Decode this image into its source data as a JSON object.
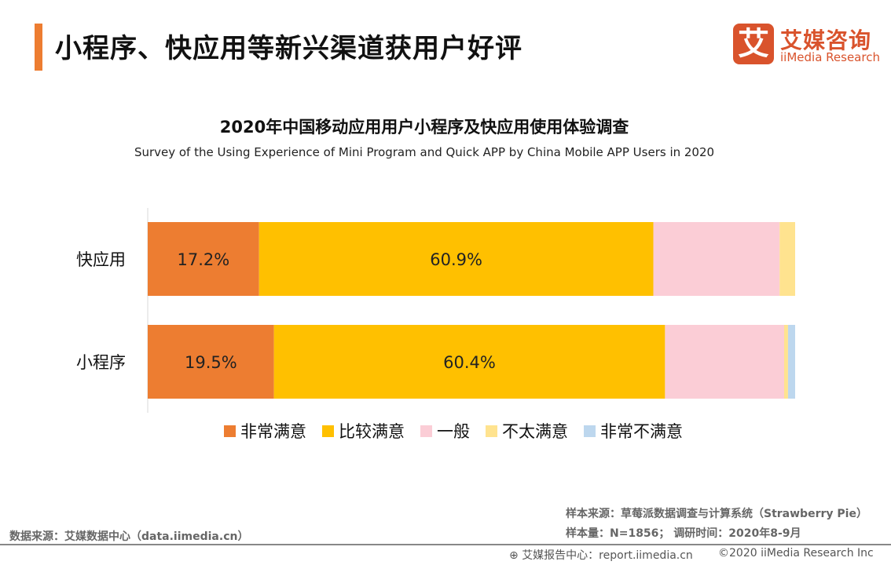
{
  "header": {
    "title": "小程序、快应用等新兴渠道获用户好评",
    "logo_mark": "艾",
    "logo_cn": "艾媒咨询",
    "logo_en": "iiMedia Research"
  },
  "chart_data": {
    "type": "bar",
    "orientation": "horizontal",
    "stacked": true,
    "title": "2020年中国移动应用用户小程序及快应用使用体验调查",
    "subtitle": "Survey of the Using Experience of Mini Program and Quick APP by China Mobile APP Users in 2020",
    "categories": [
      "快应用",
      "小程序"
    ],
    "series": [
      {
        "name": "非常满意",
        "color": "#ed7d31",
        "values": [
          17.2,
          19.5
        ],
        "labels": [
          "17.2%",
          "19.5%"
        ]
      },
      {
        "name": "比较满意",
        "color": "#ffc000",
        "values": [
          60.9,
          60.4
        ],
        "labels": [
          "60.9%",
          "60.4%"
        ]
      },
      {
        "name": "一般",
        "color": "#fbcdd6",
        "values": [
          19.5,
          18.4
        ]
      },
      {
        "name": "不太满意",
        "color": "#ffe38f",
        "values": [
          2.4,
          0.6
        ]
      },
      {
        "name": "非常不满意",
        "color": "#bdd7ee",
        "values": [
          0,
          1.1
        ]
      }
    ],
    "xlim": [
      0,
      100
    ],
    "legend": "bottom",
    "grid": false
  },
  "footer": {
    "source_left": "数据来源：艾媒数据中心（data.iimedia.cn）",
    "sample_source": "样本来源：草莓派数据调查与计算系统（Strawberry Pie）",
    "sample_size": "样本量：N=1856； 调研时间：2020年8-9月",
    "report_center": "艾媒报告中心：report.iimedia.cn",
    "copyright": "©2020  iiMedia Research  Inc"
  }
}
